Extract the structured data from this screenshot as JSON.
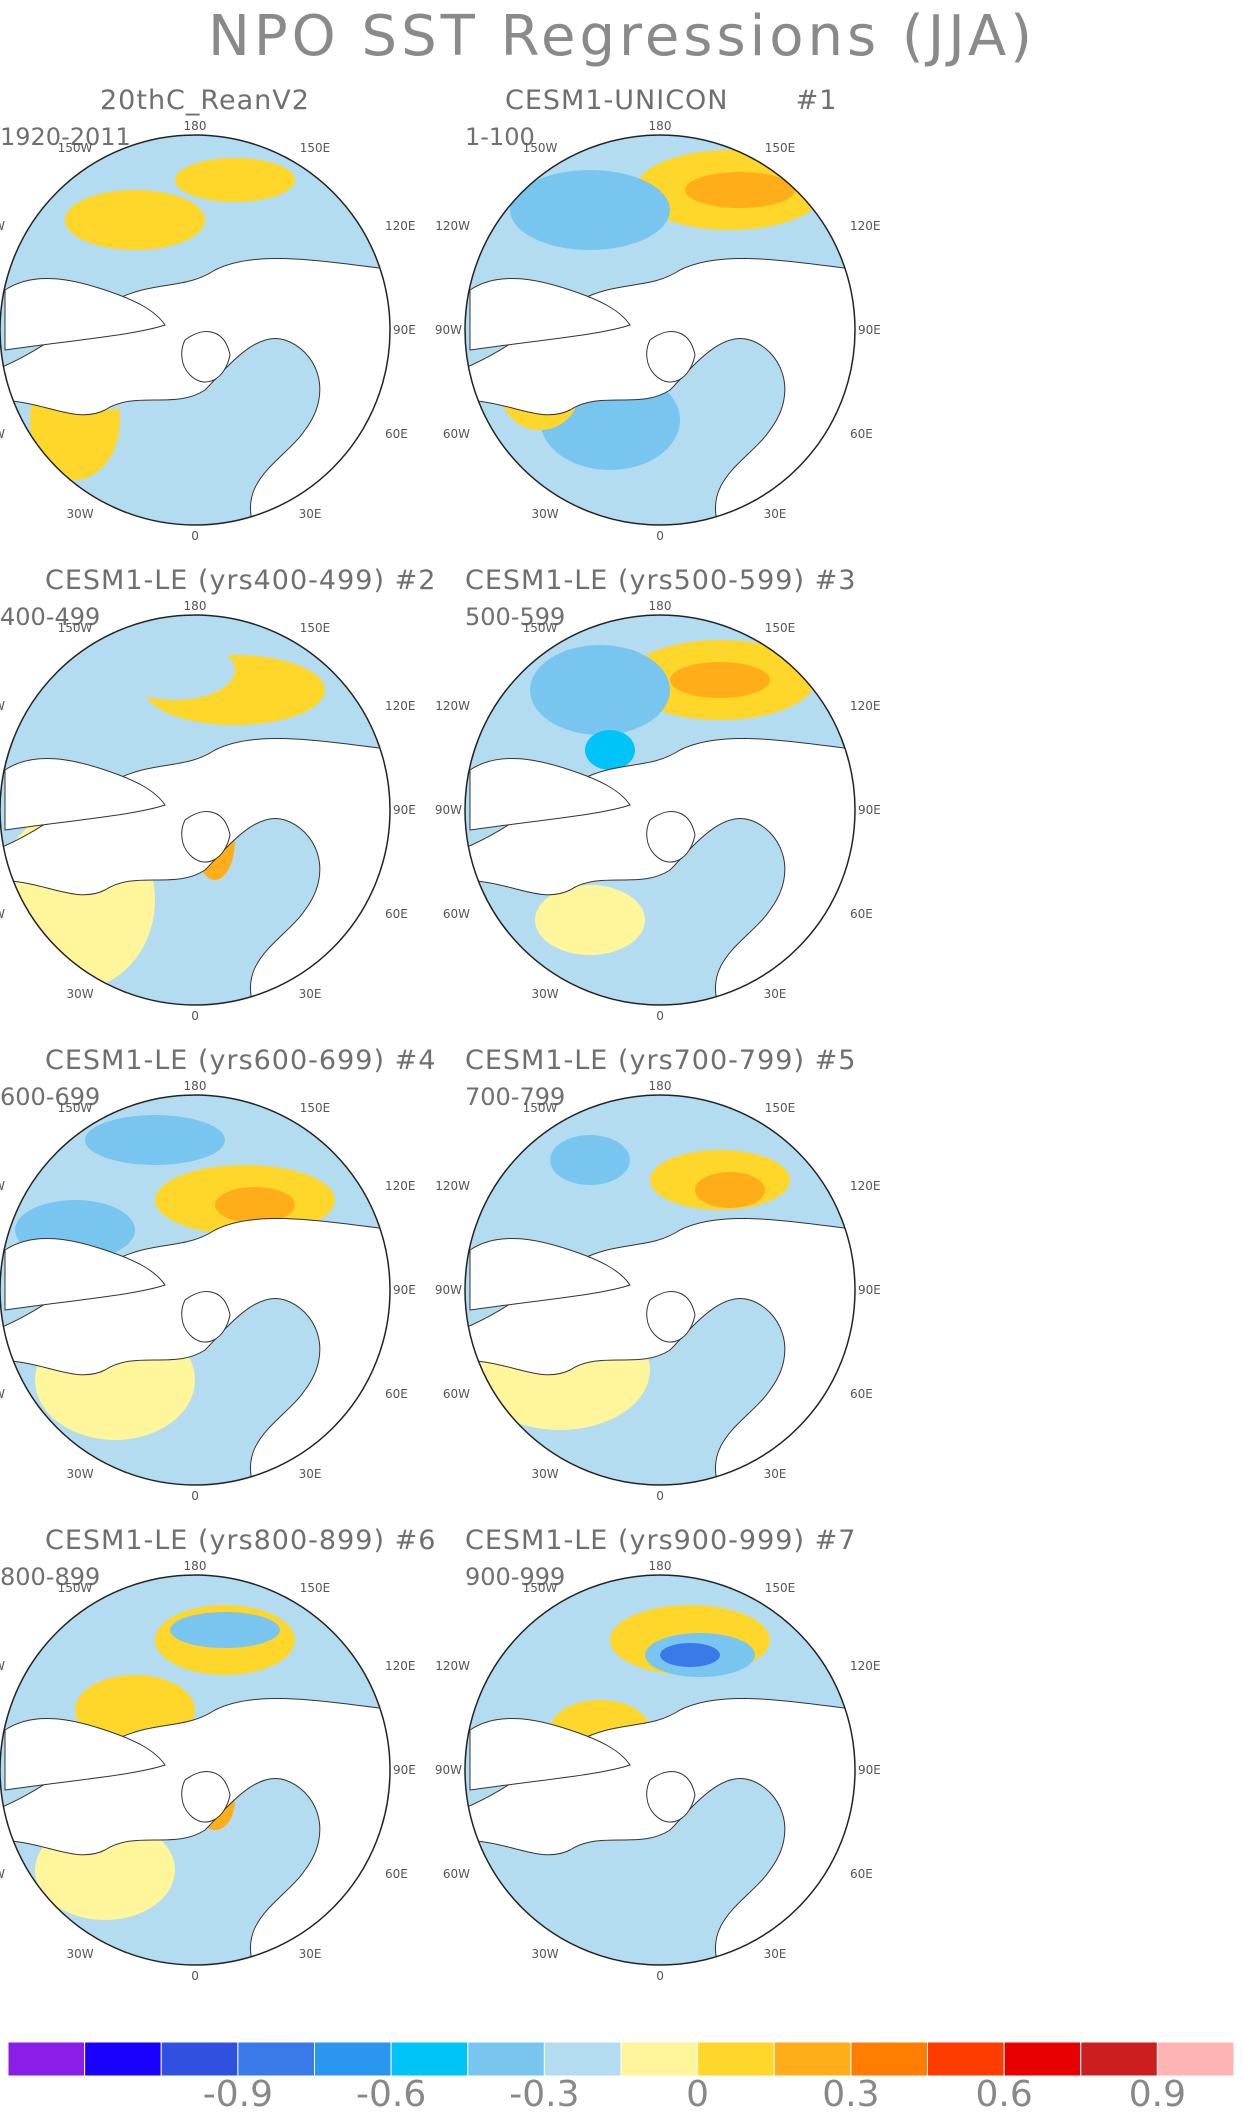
{
  "title": "NPO SST Regressions (JJA)",
  "panels": [
    {
      "title": "20thC_ReanV2",
      "num": "",
      "period": "1920-2011"
    },
    {
      "title": "CESM1-UNICON",
      "num": "#1",
      "period": "1-100"
    },
    {
      "title": "CESM1-LE (yrs400-499)",
      "num": "#2",
      "period": "400-499"
    },
    {
      "title": "CESM1-LE (yrs500-599)",
      "num": "#3",
      "period": "500-599"
    },
    {
      "title": "CESM1-LE (yrs600-699)",
      "num": "#4",
      "period": "600-699"
    },
    {
      "title": "CESM1-LE (yrs700-799)",
      "num": "#5",
      "period": "700-799"
    },
    {
      "title": "CESM1-LE (yrs800-899)",
      "num": "#6",
      "period": "800-899"
    },
    {
      "title": "CESM1-LE (yrs900-999)",
      "num": "#7",
      "period": "900-999"
    }
  ],
  "lon_labels": {
    "top": "180",
    "tl": "150W",
    "tr": "150E",
    "ul": "120W",
    "ur": "120E",
    "l": "90W",
    "r": "90E",
    "ll": "60W",
    "lr": "60E",
    "bl": "30W",
    "br": "30E",
    "bottom": "0"
  },
  "colorbar": {
    "colors": [
      "#8a1ee8",
      "#1a00ff",
      "#3050e0",
      "#3a7ae8",
      "#2a96f0",
      "#00c4f8",
      "#78c6f0",
      "#b4dcf0",
      "#fff59a",
      "#ffd62a",
      "#ffad18",
      "#ff7d00",
      "#ff3c00",
      "#e80000",
      "#cc1e1e",
      "#ffb4b4"
    ],
    "labels": [
      "-0.9",
      "-0.6",
      "-0.3",
      "0",
      "0.3",
      "0.6",
      "0.9"
    ]
  }
}
